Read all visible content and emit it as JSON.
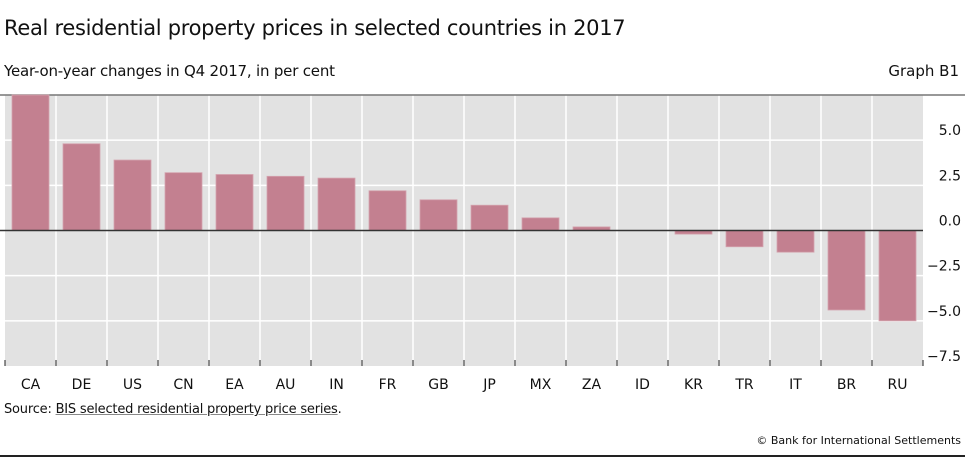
{
  "header": {
    "title": "Real residential property prices in selected countries in 2017",
    "subtitle": "Year-on-year changes in Q4 2017, in per cent",
    "graph_id": "Graph B1"
  },
  "footer": {
    "source_prefix": "Source: ",
    "source_link": "BIS selected residential property price series",
    "source_suffix": ".",
    "copyright": "© Bank for International Settlements"
  },
  "colors": {
    "bar": "#c38090",
    "plot_bg": "#e2e2e2",
    "grid": "#ffffff",
    "zero_line": "#333333"
  },
  "chart_data": {
    "type": "bar",
    "title": "Real residential property prices in selected countries in 2017",
    "subtitle": "Year-on-year changes in Q4 2017, in per cent",
    "categories": [
      "CA",
      "DE",
      "US",
      "CN",
      "EA",
      "AU",
      "IN",
      "FR",
      "GB",
      "JP",
      "MX",
      "ZA",
      "ID",
      "KR",
      "TR",
      "IT",
      "BR",
      "RU"
    ],
    "values": [
      7.5,
      4.8,
      3.9,
      3.2,
      3.1,
      3.0,
      2.9,
      2.2,
      1.7,
      1.4,
      0.7,
      0.2,
      0.0,
      -0.2,
      -0.9,
      -1.2,
      -4.4,
      -5.0
    ],
    "ylim": [
      -7.5,
      7.5
    ],
    "yticks": [
      5.0,
      2.5,
      0.0,
      -2.5,
      -5.0,
      -7.5
    ],
    "ytick_labels": [
      "5.0",
      "2.5",
      "0.0",
      "−2.5",
      "−5.0",
      "−7.5"
    ],
    "yaxis_position": "right",
    "grid": true,
    "legend": "none"
  }
}
